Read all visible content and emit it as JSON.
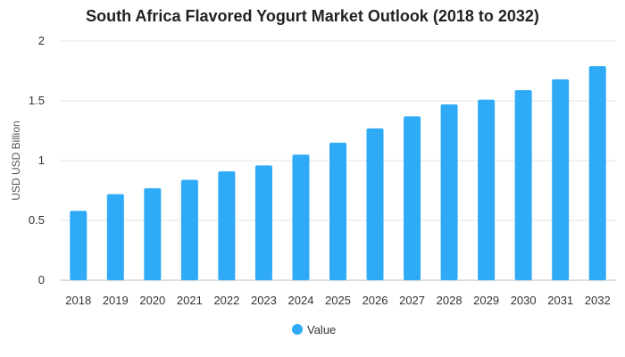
{
  "chart_data": {
    "type": "bar",
    "title": "South Africa Flavored Yogurt Market Outlook (2018 to 2032)",
    "xlabel": "",
    "ylabel": "USD USD Billion",
    "categories": [
      "2018",
      "2019",
      "2020",
      "2021",
      "2022",
      "2023",
      "2024",
      "2025",
      "2026",
      "2027",
      "2028",
      "2029",
      "2030",
      "2031",
      "2032"
    ],
    "series": [
      {
        "name": "Value",
        "values": [
          0.58,
          0.72,
          0.77,
          0.84,
          0.91,
          0.96,
          1.05,
          1.15,
          1.27,
          1.37,
          1.47,
          1.51,
          1.59,
          1.68,
          1.79
        ]
      }
    ],
    "ylim": [
      0,
      2
    ],
    "yticks": [
      0,
      0.5,
      1,
      1.5,
      2
    ],
    "grid": true,
    "legend_position": "bottom",
    "colors": {
      "bar": "#2eaaf7",
      "grid": "#e6e6e6",
      "baseline": "#bdbdbd"
    }
  }
}
